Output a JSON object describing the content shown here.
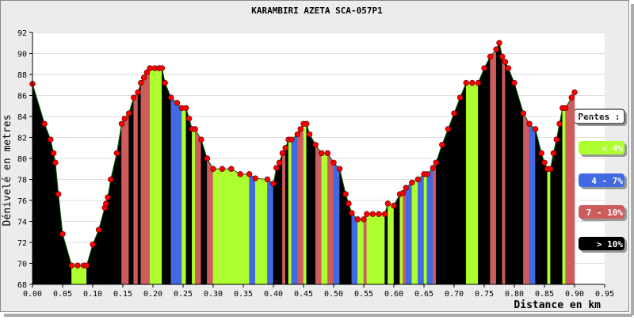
{
  "chart_data": {
    "type": "line",
    "title": "KARAMBIRI AZETA SCA-057P1",
    "x_label": "Distance en km",
    "y_label": "Dénivelé en metres",
    "legend_title": "Pentes :",
    "slope_classes": [
      {
        "label": "< 4%",
        "color": "#adff2f"
      },
      {
        "label": "4 - 7%",
        "color": "#4169e1"
      },
      {
        "label": "7 - 10%",
        "color": "#cd5c5c"
      },
      {
        "label": "> 10%",
        "color": "#000000"
      }
    ],
    "x": [
      0.0,
      0.02,
      0.03,
      0.035,
      0.038,
      0.043,
      0.05,
      0.065,
      0.075,
      0.085,
      0.09,
      0.1,
      0.11,
      0.12,
      0.122,
      0.125,
      0.13,
      0.14,
      0.148,
      0.153,
      0.16,
      0.168,
      0.175,
      0.18,
      0.185,
      0.19,
      0.195,
      0.203,
      0.21,
      0.215,
      0.22,
      0.23,
      0.24,
      0.248,
      0.255,
      0.26,
      0.265,
      0.27,
      0.28,
      0.29,
      0.3,
      0.315,
      0.33,
      0.345,
      0.36,
      0.37,
      0.39,
      0.4,
      0.405,
      0.41,
      0.415,
      0.42,
      0.425,
      0.43,
      0.44,
      0.445,
      0.45,
      0.455,
      0.46,
      0.47,
      0.48,
      0.49,
      0.5,
      0.51,
      0.52,
      0.525,
      0.53,
      0.54,
      0.55,
      0.555,
      0.565,
      0.575,
      0.585,
      0.59,
      0.6,
      0.61,
      0.615,
      0.62,
      0.63,
      0.64,
      0.65,
      0.655,
      0.665,
      0.67,
      0.68,
      0.69,
      0.7,
      0.71,
      0.72,
      0.73,
      0.74,
      0.75,
      0.76,
      0.77,
      0.775,
      0.78,
      0.785,
      0.79,
      0.8,
      0.815,
      0.825,
      0.835,
      0.845,
      0.85,
      0.855,
      0.86,
      0.865,
      0.87,
      0.875,
      0.88,
      0.885,
      0.895,
      0.9
    ],
    "values": [
      87.1,
      83.3,
      81.8,
      80.5,
      79.6,
      76.6,
      72.8,
      69.8,
      69.8,
      69.8,
      69.8,
      71.8,
      73.2,
      75.3,
      75.7,
      76.3,
      78.0,
      80.5,
      83.3,
      83.8,
      84.3,
      85.8,
      86.3,
      87.2,
      87.7,
      88.2,
      88.6,
      88.6,
      88.6,
      88.6,
      87.2,
      85.8,
      85.3,
      84.8,
      84.8,
      83.8,
      82.8,
      82.8,
      81.8,
      80.0,
      79.0,
      79.0,
      79.0,
      78.5,
      78.5,
      78.1,
      78.0,
      77.6,
      79.1,
      79.6,
      80.5,
      81.0,
      81.8,
      81.8,
      82.3,
      82.8,
      83.3,
      83.3,
      82.3,
      81.3,
      80.5,
      80.5,
      79.6,
      79.0,
      76.6,
      75.7,
      74.8,
      74.2,
      74.2,
      74.7,
      74.7,
      74.7,
      74.7,
      75.7,
      75.5,
      76.6,
      76.7,
      77.2,
      77.7,
      78.0,
      78.5,
      78.5,
      79.1,
      79.6,
      81.3,
      82.8,
      84.3,
      85.8,
      87.2,
      87.2,
      87.2,
      88.6,
      89.7,
      90.4,
      91.0,
      89.7,
      89.2,
      88.6,
      87.2,
      84.3,
      83.3,
      82.8,
      80.5,
      79.6,
      79.0,
      79.0,
      80.5,
      81.8,
      83.3,
      84.8,
      84.8,
      85.8,
      86.3
    ],
    "line_color": "#006400",
    "marker_color": "#ff0000",
    "xlim": [
      0,
      0.95
    ],
    "ylim": [
      68,
      92
    ],
    "xticks": [
      {
        "value": 0,
        "label": "0.00"
      },
      {
        "value": 0.05,
        "label": "0.05"
      },
      {
        "value": 0.1,
        "label": "0.10"
      },
      {
        "value": 0.15,
        "label": "0.15"
      },
      {
        "value": 0.2,
        "label": "0.20"
      },
      {
        "value": 0.25,
        "label": "0.25"
      },
      {
        "value": 0.3,
        "label": "0.30"
      },
      {
        "value": 0.35,
        "label": "0.35"
      },
      {
        "value": 0.4,
        "label": "0.40"
      },
      {
        "value": 0.45,
        "label": "0.45"
      },
      {
        "value": 0.5,
        "label": "0.50"
      },
      {
        "value": 0.55,
        "label": "0.55"
      },
      {
        "value": 0.6,
        "label": "0.60"
      },
      {
        "value": 0.65,
        "label": "0.65"
      },
      {
        "value": 0.7,
        "label": "0.70"
      },
      {
        "value": 0.75,
        "label": "0.75"
      },
      {
        "value": 0.8,
        "label": "0.80"
      },
      {
        "value": 0.85,
        "label": "0.85"
      },
      {
        "value": 0.9,
        "label": "0.90"
      },
      {
        "value": 0.95,
        "label": "0.95"
      }
    ],
    "yticks": [
      68,
      70,
      72,
      74,
      76,
      78,
      80,
      82,
      84,
      86,
      88,
      90,
      92
    ],
    "grid": true
  }
}
